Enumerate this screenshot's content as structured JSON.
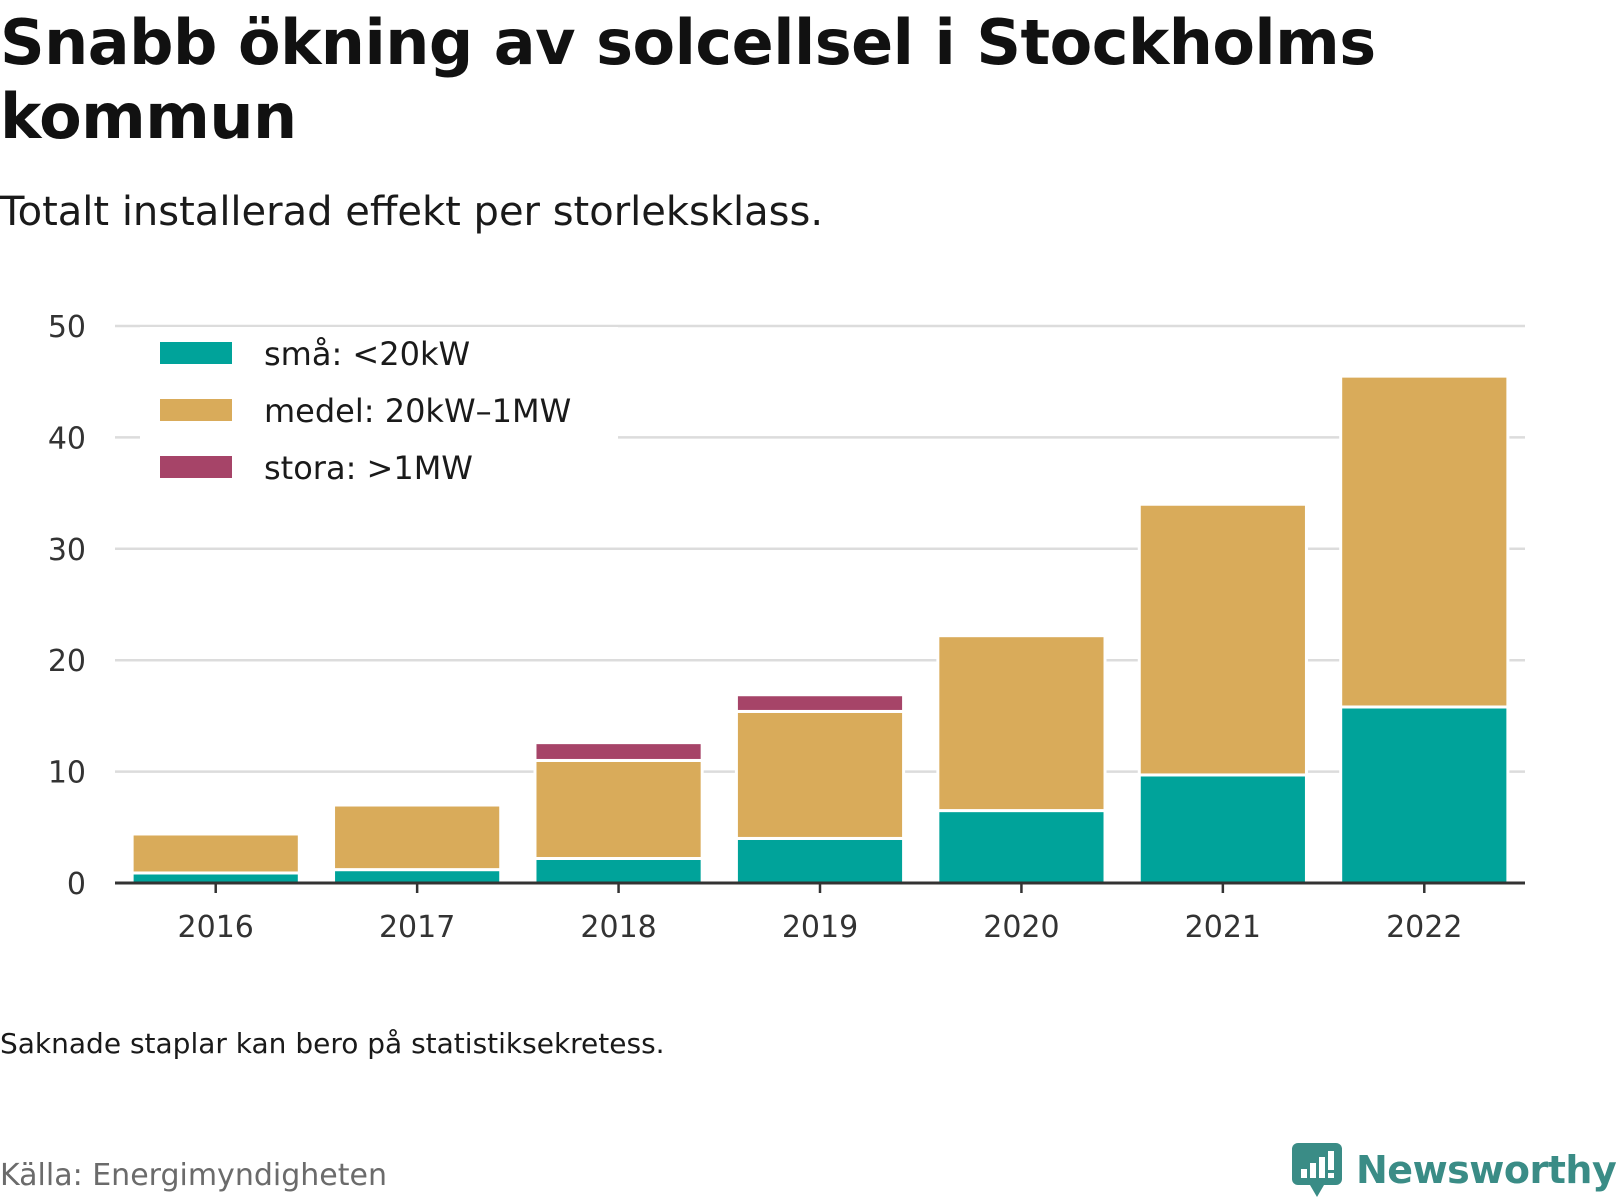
{
  "title": "Snabb ökning av solcellsel i Stockholms kommun",
  "subtitle": "Totalt installerad effekt per storleksklass.",
  "note": "Saknade staplar kan bero på statistiksekretess.",
  "source": "Källa: Energimyndigheten",
  "brand": {
    "name": "Newsworthy",
    "icon": "newsworthy-logo-icon",
    "color": "#3a8c86"
  },
  "chart_data": {
    "type": "bar",
    "stacked": true,
    "categories": [
      "2016",
      "2017",
      "2018",
      "2019",
      "2020",
      "2021",
      "2022"
    ],
    "series": [
      {
        "name": "små: <20kW",
        "color": "#00a39a",
        "values": [
          0.9,
          1.2,
          2.2,
          4.0,
          6.5,
          9.7,
          15.8
        ]
      },
      {
        "name": "medel: 20kW–1MW",
        "color": "#d9ab5a",
        "values": [
          3.5,
          5.8,
          8.8,
          11.4,
          15.7,
          24.3,
          29.7
        ]
      },
      {
        "name": "stora: >1MW",
        "color": "#a64468",
        "values": [
          0,
          0,
          1.6,
          1.5,
          0,
          0,
          0
        ]
      }
    ],
    "ylim": [
      0,
      50
    ],
    "yticks": [
      0,
      10,
      20,
      30,
      40,
      50
    ],
    "ytick_labels": [
      "0",
      "10",
      "20",
      "30",
      "40",
      "50"
    ],
    "xlabel": "",
    "ylabel": "",
    "grid": true,
    "legend_position": "top-left"
  }
}
